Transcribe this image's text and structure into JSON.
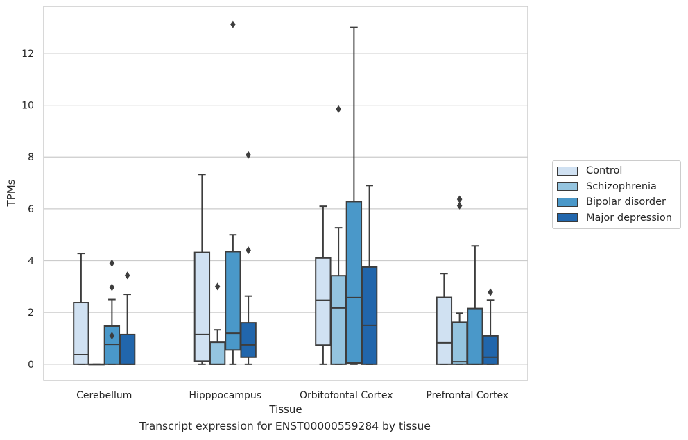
{
  "chart_data": {
    "type": "box",
    "title": "Transcript expression for ENST00000559284 by tissue",
    "xlabel": "Tissue",
    "ylabel": "TPMs",
    "ylim": [
      -0.62,
      13.82
    ],
    "yticks": [
      0,
      2,
      4,
      6,
      8,
      10,
      12
    ],
    "grid": "horizontal",
    "legend_position": "right",
    "categories": [
      "Cerebellum",
      "Hipppocampus",
      "Orbitofontal Cortex",
      "Prefrontal Cortex"
    ],
    "series": [
      {
        "name": "Control",
        "color": "#d0e1f2",
        "boxes": [
          {
            "low": 0,
            "q1": 0,
            "median": 0.37,
            "q3": 2.38,
            "high": 4.28,
            "outliers": []
          },
          {
            "low": 0,
            "q1": 0.12,
            "median": 1.15,
            "q3": 4.32,
            "high": 7.33,
            "outliers": []
          },
          {
            "low": 0,
            "q1": 0.74,
            "median": 2.47,
            "q3": 4.1,
            "high": 6.1,
            "outliers": []
          },
          {
            "low": 0,
            "q1": 0,
            "median": 0.83,
            "q3": 2.58,
            "high": 3.5,
            "outliers": []
          }
        ]
      },
      {
        "name": "Schizophrenia",
        "color": "#94c4df",
        "boxes": [
          {
            "low": 0,
            "q1": 0,
            "median": 0,
            "q3": 0,
            "high": 0,
            "outliers": []
          },
          {
            "low": 0,
            "q1": 0,
            "median": 0,
            "q3": 0.85,
            "high": 1.33,
            "outliers": [
              3.0
            ]
          },
          {
            "low": 0,
            "q1": 0,
            "median": 2.17,
            "q3": 3.42,
            "high": 5.27,
            "outliers": [
              9.85
            ]
          },
          {
            "low": 0,
            "q1": 0,
            "median": 0.1,
            "q3": 1.62,
            "high": 1.97,
            "outliers": [
              6.12,
              6.37
            ]
          }
        ]
      },
      {
        "name": "Bipolar disorder",
        "color": "#4a98c9",
        "boxes": [
          {
            "low": 0,
            "q1": 0,
            "median": 0.77,
            "q3": 1.47,
            "high": 2.5,
            "outliers": [
              1.1,
              2.97,
              3.9
            ]
          },
          {
            "low": 0,
            "q1": 0.55,
            "median": 1.2,
            "q3": 4.35,
            "high": 5.0,
            "outliers": [
              13.12
            ]
          },
          {
            "low": 0,
            "q1": 0.05,
            "median": 2.57,
            "q3": 6.28,
            "high": 13.0,
            "outliers": []
          },
          {
            "low": 0,
            "q1": 0,
            "median": 0,
            "q3": 2.15,
            "high": 4.57,
            "outliers": []
          }
        ]
      },
      {
        "name": "Major depression",
        "color": "#2166ac",
        "boxes": [
          {
            "low": 0,
            "q1": 0,
            "median": 0,
            "q3": 1.15,
            "high": 2.7,
            "outliers": [
              3.43
            ]
          },
          {
            "low": 0,
            "q1": 0.27,
            "median": 0.75,
            "q3": 1.6,
            "high": 2.63,
            "outliers": [
              4.4,
              8.08
            ]
          },
          {
            "low": 0,
            "q1": 0,
            "median": 1.5,
            "q3": 3.75,
            "high": 6.9,
            "outliers": []
          },
          {
            "low": 0,
            "q1": 0,
            "median": 0.27,
            "q3": 1.1,
            "high": 2.48,
            "outliers": [
              2.78
            ]
          }
        ]
      }
    ]
  }
}
